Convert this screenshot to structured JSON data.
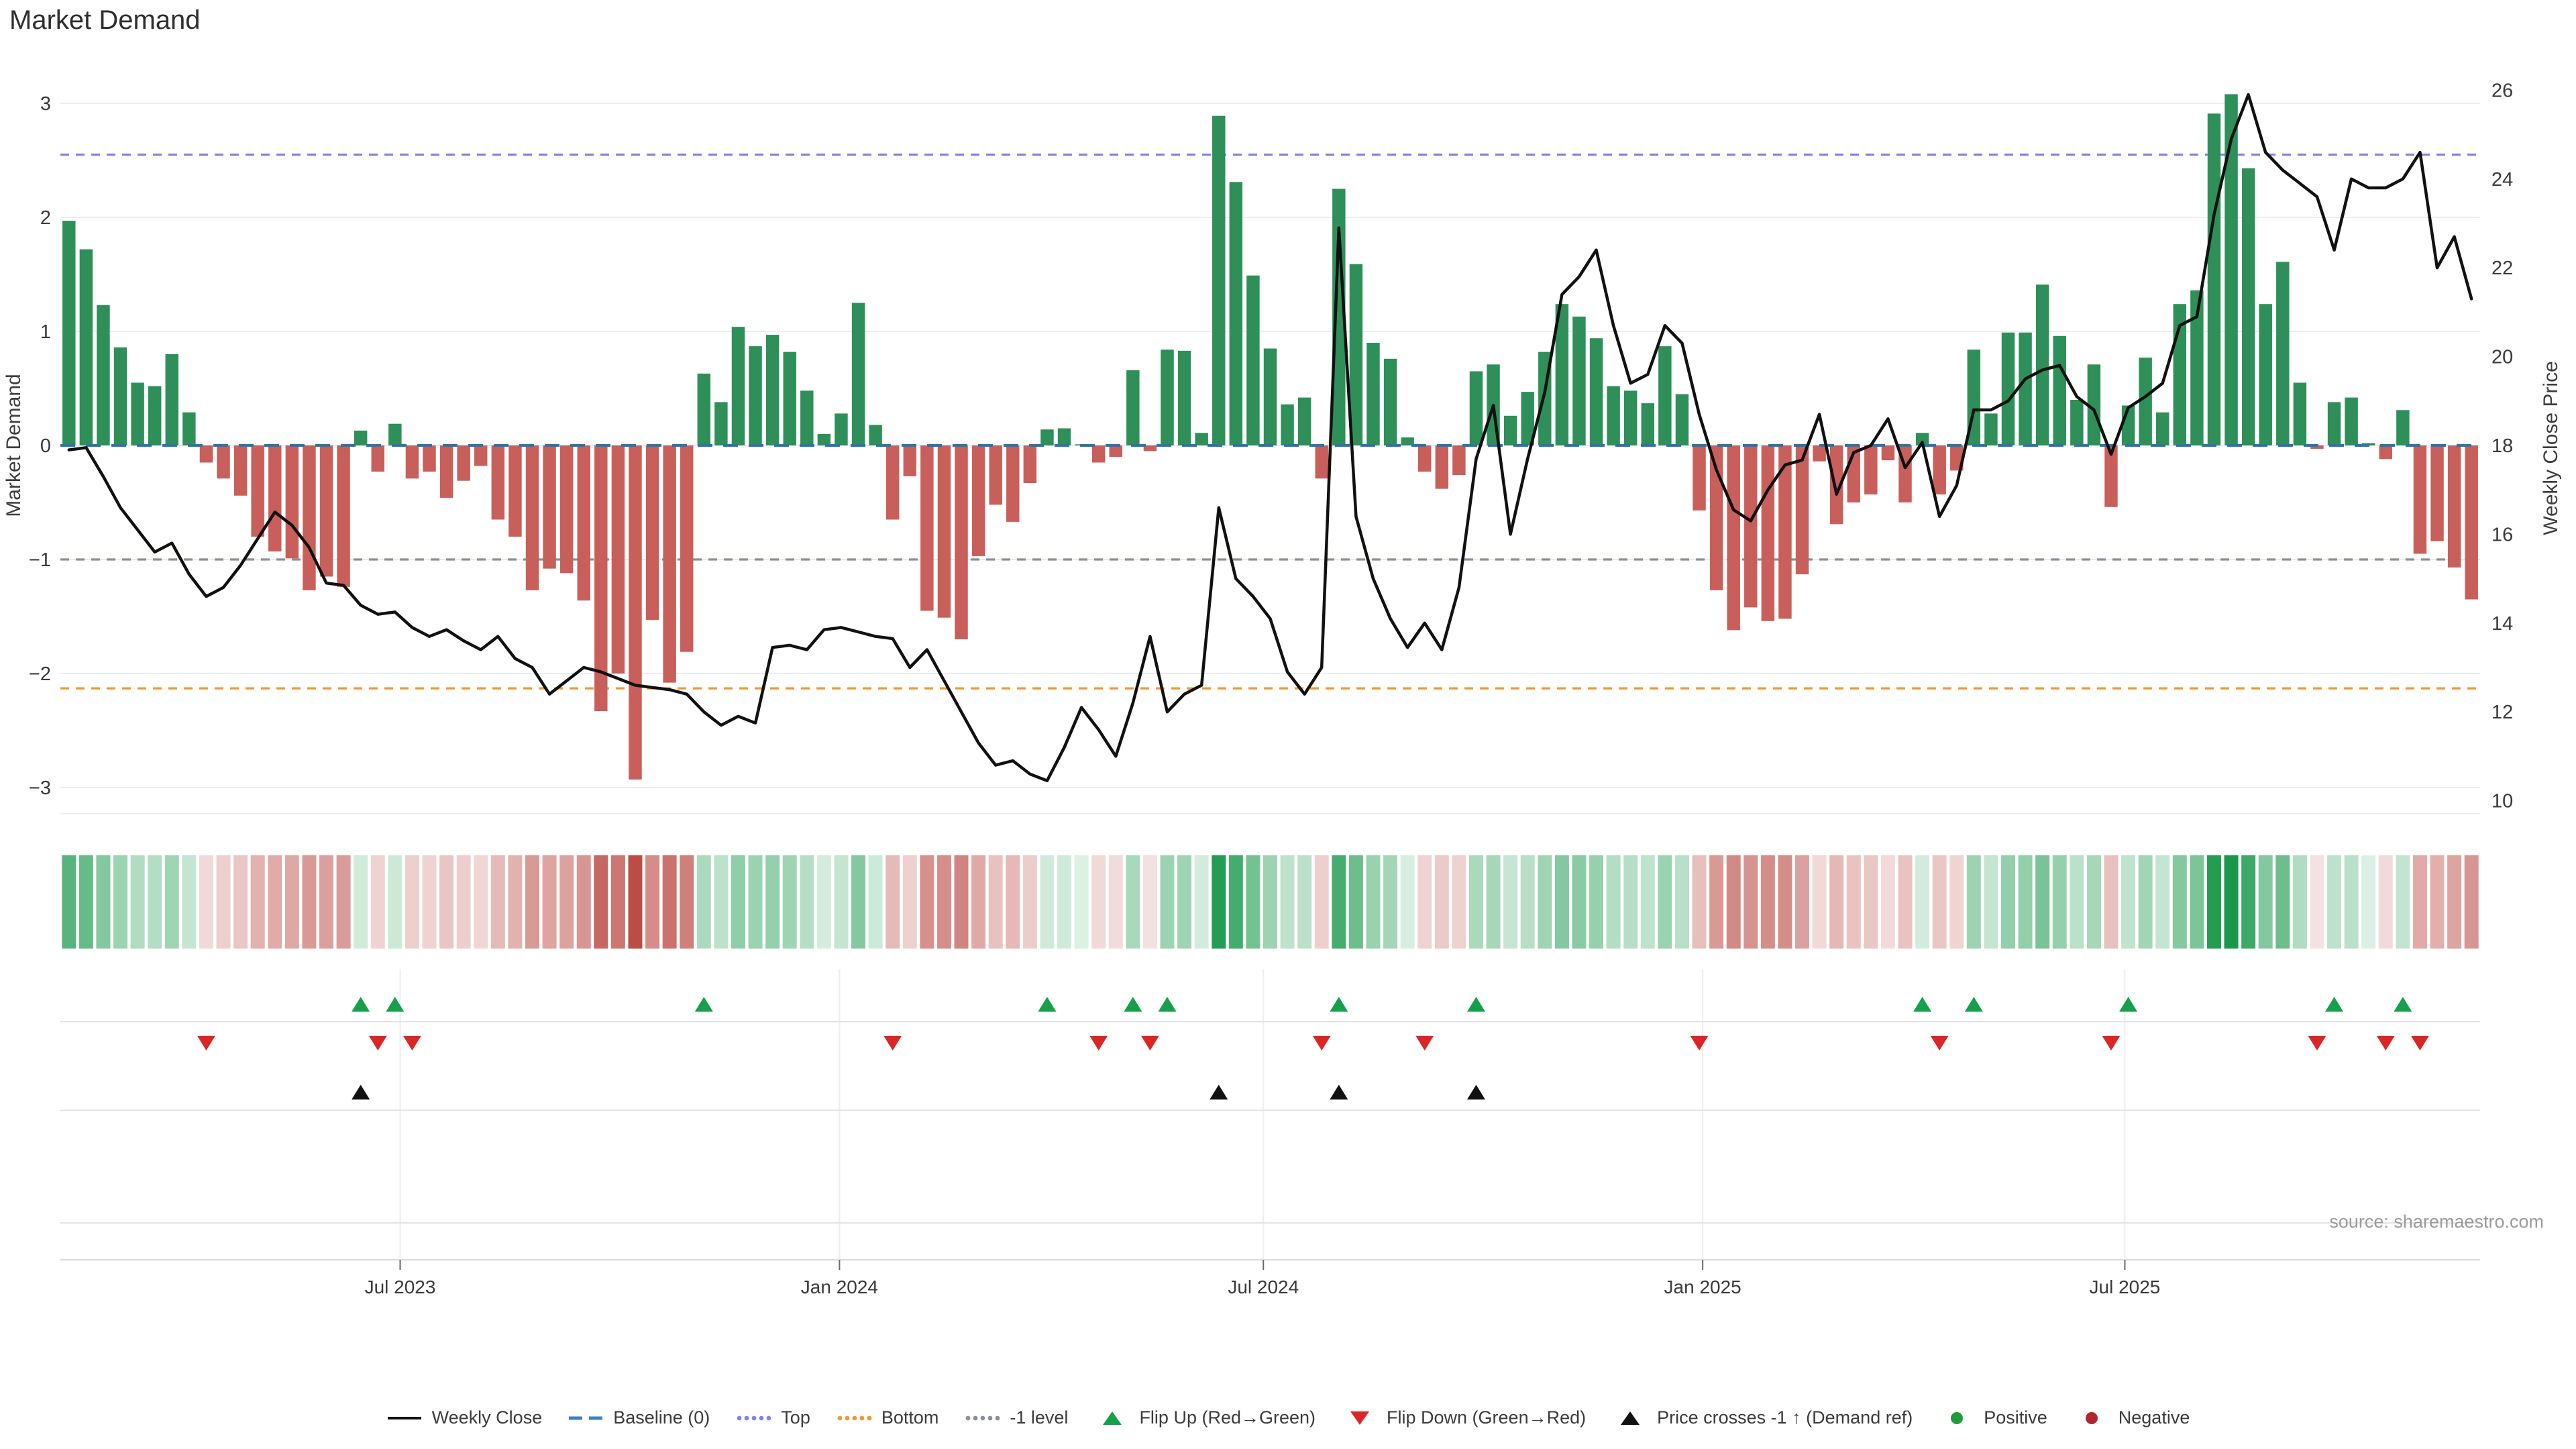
{
  "title": "Market Demand",
  "source": "source: sharemaestro.com",
  "left_axis": {
    "label": "Market Demand",
    "ticks": [
      "3",
      "2",
      "1",
      "0",
      "−1",
      "−2",
      "−3"
    ],
    "tick_values": [
      3,
      2,
      1,
      0,
      -1,
      -2,
      -3
    ],
    "min": -3.2,
    "max": 3.2
  },
  "right_axis": {
    "label": "Weekly Close Price",
    "ticks": [
      "26",
      "24",
      "22",
      "20",
      "18",
      "16",
      "14",
      "12",
      "10"
    ],
    "tick_values": [
      26,
      24,
      22,
      20,
      18,
      16,
      14,
      12,
      10
    ],
    "min": 9.8,
    "max": 26.2
  },
  "x_axis": {
    "ticks": [
      {
        "label": "Jul 2023",
        "pos": 19.3
      },
      {
        "label": "Jan 2024",
        "pos": 44.9
      },
      {
        "label": "Jul 2024",
        "pos": 69.6
      },
      {
        "label": "Jan 2025",
        "pos": 95.2
      },
      {
        "label": "Jul 2025",
        "pos": 119.8
      }
    ]
  },
  "colors": {
    "bar_positive": "#2e8f58",
    "bar_negative": "#c95f5a",
    "price_line": "#111111",
    "baseline": "#2e74a8",
    "top_line": "#8183e6",
    "bottom_line": "#ee9738",
    "minus1_line": "#8a8f98",
    "flip_up": "#16a04b",
    "flip_down": "#dc2626",
    "price_cross": "#111111",
    "positive_dot": "#219a3b",
    "negative_dot": "#b0282e",
    "grid": "#ececf2",
    "separator": "#e2e2e8",
    "axis_text": "#3a3a3a",
    "source_text": "#9a9a9a",
    "heat_pos": "#18984a",
    "heat_neg": "#b9453e"
  },
  "legend": [
    {
      "swatch": "line",
      "color": "#111111",
      "label": "Weekly Close"
    },
    {
      "swatch": "dashes",
      "color": "#3f7fbf",
      "label": "Baseline (0)"
    },
    {
      "swatch": "dots",
      "color": "#8183e6",
      "label": "Top"
    },
    {
      "swatch": "dots",
      "color": "#ee9738",
      "label": "Bottom"
    },
    {
      "swatch": "dots",
      "color": "#8a8f98",
      "label": "-1 level"
    },
    {
      "swatch": "tri-up",
      "color": "#16a04b",
      "label": "Flip Up (Red→Green)"
    },
    {
      "swatch": "tri-down",
      "color": "#dc2626",
      "label": "Flip Down (Green→Red)"
    },
    {
      "swatch": "tri-up",
      "color": "#111111",
      "label": "Price crosses -1 ↑ (Demand ref)"
    },
    {
      "swatch": "circle",
      "color": "#219a3b",
      "label": "Positive"
    },
    {
      "swatch": "circle",
      "color": "#b0282e",
      "label": "Negative"
    }
  ],
  "chart_data": {
    "type": "bar",
    "subtype": "bar+line dual-axis weekly",
    "title": "Market Demand",
    "n_weeks": 141,
    "series": [
      {
        "name": "Market Demand",
        "type": "bar",
        "axis": "left",
        "values": [
          1.97,
          1.72,
          1.23,
          0.86,
          0.55,
          0.52,
          0.8,
          0.29,
          -0.15,
          -0.29,
          -0.44,
          -0.8,
          -0.93,
          -0.99,
          -1.27,
          -1.15,
          -1.24,
          0.13,
          -0.23,
          0.19,
          -0.29,
          -0.23,
          -0.46,
          -0.31,
          -0.18,
          -0.65,
          -0.8,
          -1.27,
          -1.08,
          -1.12,
          -1.36,
          -2.33,
          -2.0,
          -2.93,
          -1.53,
          -2.08,
          -1.81,
          0.63,
          0.38,
          1.04,
          0.87,
          0.97,
          0.82,
          0.48,
          0.1,
          0.28,
          1.25,
          0.18,
          -0.65,
          -0.27,
          -1.45,
          -1.51,
          -1.7,
          -0.97,
          -0.52,
          -0.67,
          -0.33,
          0.14,
          0.15,
          0.01,
          -0.15,
          -0.1,
          0.66,
          -0.05,
          0.84,
          0.83,
          0.11,
          2.89,
          2.31,
          1.49,
          0.85,
          0.36,
          0.42,
          -0.29,
          2.25,
          1.59,
          0.9,
          0.76,
          0.07,
          -0.23,
          -0.38,
          -0.26,
          0.65,
          0.71,
          0.26,
          0.47,
          0.82,
          1.24,
          1.13,
          0.94,
          0.52,
          0.48,
          0.37,
          0.87,
          0.45,
          -0.57,
          -1.27,
          -1.62,
          -1.42,
          -1.54,
          -1.52,
          -1.13,
          -0.14,
          -0.69,
          -0.5,
          -0.43,
          -0.13,
          -0.5,
          0.11,
          -0.43,
          -0.22,
          0.84,
          0.28,
          0.99,
          0.99,
          1.41,
          0.96,
          0.4,
          0.71,
          -0.54,
          0.35,
          0.77,
          0.29,
          1.24,
          1.36,
          2.91,
          3.08,
          2.43,
          1.24,
          1.61,
          0.55,
          -0.03,
          0.38,
          0.42,
          0.02,
          -0.12,
          0.31,
          -0.95,
          -0.84,
          -1.07,
          -1.35
        ]
      },
      {
        "name": "Weekly Close",
        "type": "line",
        "axis": "right",
        "values": [
          17.9,
          17.95,
          17.3,
          16.6,
          16.1,
          15.6,
          15.8,
          15.1,
          14.6,
          14.8,
          15.3,
          15.9,
          16.5,
          16.2,
          15.7,
          14.9,
          14.85,
          14.4,
          14.2,
          14.25,
          13.9,
          13.7,
          13.85,
          13.6,
          13.4,
          13.7,
          13.2,
          13.0,
          12.4,
          12.7,
          13.0,
          12.9,
          12.75,
          12.6,
          12.55,
          12.5,
          12.4,
          12.0,
          11.7,
          11.9,
          11.75,
          13.45,
          13.5,
          13.4,
          13.85,
          13.9,
          13.8,
          13.7,
          13.65,
          13.0,
          13.4,
          12.7,
          12.0,
          11.3,
          10.8,
          10.9,
          10.6,
          10.45,
          11.2,
          12.1,
          11.6,
          11.0,
          12.2,
          13.7,
          12.0,
          12.4,
          12.6,
          16.6,
          15.0,
          14.6,
          14.1,
          12.9,
          12.4,
          13.0,
          22.9,
          16.4,
          15.0,
          14.1,
          13.45,
          14.0,
          13.4,
          14.8,
          17.7,
          18.9,
          16.0,
          17.7,
          19.2,
          21.4,
          21.8,
          22.4,
          20.7,
          19.4,
          19.6,
          20.7,
          20.3,
          18.7,
          17.45,
          16.55,
          16.3,
          17.0,
          17.56,
          17.67,
          18.7,
          16.9,
          17.84,
          18.0,
          18.6,
          17.5,
          18.07,
          16.4,
          17.1,
          18.8,
          18.8,
          19.0,
          19.5,
          19.7,
          19.8,
          19.1,
          18.8,
          17.8,
          18.85,
          19.1,
          19.4,
          20.7,
          20.9,
          23.2,
          24.9,
          25.9,
          24.6,
          24.2,
          23.9,
          23.6,
          22.4,
          24.0,
          23.8,
          23.8,
          24.0,
          24.6,
          22.0,
          22.7,
          21.3
        ]
      }
    ],
    "reference_lines": [
      {
        "name": "Baseline (0)",
        "value": 0,
        "style": "dash",
        "color": "#2e74a8"
      },
      {
        "name": "Top",
        "value": 2.55,
        "style": "dot",
        "color": "#8183e6"
      },
      {
        "name": "Bottom",
        "value": -2.13,
        "style": "dot",
        "color": "#ee9738"
      },
      {
        "name": "-1 level",
        "value": -1,
        "style": "dot",
        "color": "#8a8f98"
      }
    ],
    "markers": {
      "flip_up_indices": [
        17,
        19,
        37,
        57,
        62,
        64,
        74,
        82,
        108,
        111,
        120,
        132,
        136
      ],
      "flip_down_indices": [
        8,
        18,
        20,
        48,
        60,
        63,
        73,
        79,
        95,
        109,
        119,
        131,
        135,
        137
      ],
      "price_cross_minus1_indices": [
        17,
        67,
        74,
        82
      ]
    },
    "heatmap": {
      "description": "weekly demand heat strip, green=positive red=negative, intensity ~ |value|"
    },
    "xlabel": "",
    "ylabel_left": "Market Demand",
    "ylabel_right": "Weekly Close Price",
    "grid": true,
    "legend_position": "bottom-center"
  }
}
